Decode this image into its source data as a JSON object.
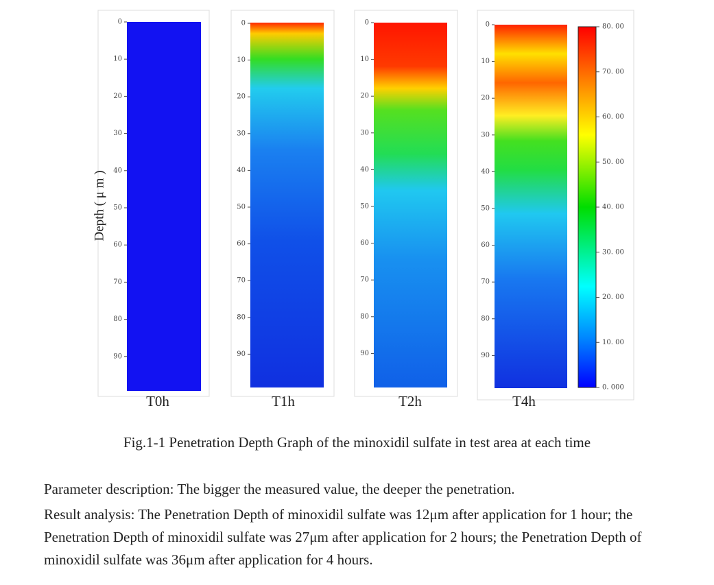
{
  "figure": {
    "y_axis_label": "Depth ( μ m )",
    "panels": [
      {
        "label": "T0h",
        "ticks": [
          "0",
          "10",
          "20",
          "30",
          "40",
          "50",
          "60",
          "70",
          "80",
          "90"
        ]
      },
      {
        "label": "T1h",
        "ticks": [
          "0",
          "10",
          "20",
          "30",
          "40",
          "50",
          "60",
          "70",
          "80",
          "90"
        ]
      },
      {
        "label": "T2h",
        "ticks": [
          "0",
          "10",
          "20",
          "30",
          "40",
          "50",
          "60",
          "70",
          "80",
          "90"
        ]
      },
      {
        "label": "T4h",
        "ticks": [
          "0",
          "10",
          "20",
          "30",
          "40",
          "50",
          "60",
          "70",
          "80",
          "90"
        ]
      }
    ],
    "colorbar_ticks": [
      "80. 00",
      "70. 00",
      "60. 00",
      "50. 00",
      "40. 00",
      "30. 00",
      "20. 00",
      "10. 00",
      "0. 000"
    ],
    "caption": "Fig.1-1 Penetration Depth Graph of the minoxidil sulfate in test area at each time"
  },
  "paragraphs": [
    "Parameter description: The bigger the measured value, the deeper the penetration.",
    "Result analysis: The Penetration Depth of minoxidil sulfate was 12μm after application for 1 hour; the Penetration Depth of minoxidil sulfate was 27μm after application for 2 hours; the Penetration Depth of minoxidil sulfate was 36μm after application for 4 hours."
  ]
}
